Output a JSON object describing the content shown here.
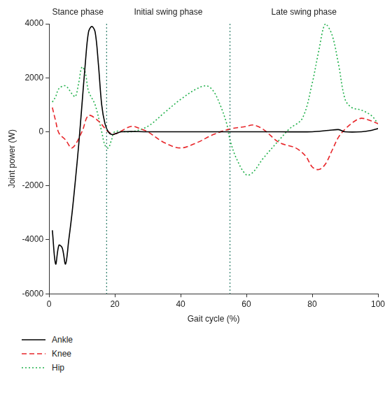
{
  "chart_data": {
    "type": "line",
    "x_label": "Gait cycle (%)",
    "y_label": "Joint power (W)",
    "xlim": [
      0,
      100
    ],
    "xticks": [
      0,
      20,
      40,
      60,
      80,
      100
    ],
    "ylim": [
      -6000,
      4000
    ],
    "yticks": [
      -6000,
      -4000,
      -2000,
      0,
      2000,
      4000
    ],
    "grid": false,
    "legend": "bottom",
    "phases": [
      {
        "label": "Stance phase",
        "start": 0,
        "end": 17.5
      },
      {
        "label": "Initial swing phase",
        "start": 17.5,
        "end": 55
      },
      {
        "label": "Late swing phase",
        "start": 55,
        "end": 100
      }
    ],
    "series": [
      {
        "name": "Ankle",
        "color": "#000000",
        "line_style": "solid",
        "x": [
          1,
          2,
          3,
          4,
          5,
          6,
          7,
          8,
          9,
          10,
          11,
          12,
          13,
          14,
          15,
          16,
          17,
          18,
          19,
          20,
          22,
          30,
          40,
          50,
          60,
          70,
          80,
          85,
          88,
          90,
          95,
          98,
          100
        ],
        "values": [
          -3650,
          -4900,
          -4200,
          -4300,
          -4900,
          -4000,
          -3000,
          -1800,
          -500,
          1000,
          2500,
          3700,
          3900,
          3700,
          2500,
          1000,
          300,
          0,
          -100,
          -80,
          0,
          0,
          0,
          0,
          0,
          0,
          0,
          50,
          80,
          0,
          0,
          50,
          120
        ]
      },
      {
        "name": "Knee",
        "color": "#e8262a",
        "line_style": "dashed",
        "x": [
          1,
          2,
          3,
          5,
          7,
          10,
          12,
          15,
          18,
          20,
          25,
          28,
          30,
          35,
          40,
          45,
          50,
          55,
          60,
          62,
          65,
          70,
          75,
          78,
          80,
          82,
          84,
          86,
          88,
          90,
          93,
          95,
          98,
          100
        ],
        "values": [
          900,
          400,
          -50,
          -300,
          -600,
          0,
          600,
          400,
          0,
          -80,
          200,
          100,
          0,
          -400,
          -600,
          -400,
          -100,
          100,
          200,
          250,
          100,
          -400,
          -600,
          -900,
          -1300,
          -1400,
          -1200,
          -700,
          -200,
          100,
          400,
          500,
          400,
          300
        ]
      },
      {
        "name": "Hip",
        "color": "#22b14c",
        "line_style": "dotted",
        "x": [
          1,
          2,
          3,
          5,
          7,
          8,
          9,
          10,
          11,
          12,
          14,
          16,
          17,
          18,
          19,
          20,
          25,
          30,
          35,
          40,
          45,
          48,
          50,
          52,
          54,
          55,
          57,
          60,
          62,
          65,
          70,
          73,
          77,
          80,
          82,
          84,
          86,
          88,
          90,
          92,
          95,
          98,
          100
        ],
        "values": [
          1100,
          1300,
          1600,
          1700,
          1400,
          1300,
          1800,
          2400,
          2200,
          1500,
          1000,
          0,
          -500,
          -600,
          -300,
          0,
          0,
          200,
          700,
          1200,
          1600,
          1700,
          1500,
          1000,
          300,
          -300,
          -1000,
          -1600,
          -1500,
          -1000,
          -300,
          100,
          500,
          1800,
          3000,
          4000,
          3600,
          2500,
          1200,
          900,
          800,
          600,
          300
        ]
      }
    ]
  }
}
